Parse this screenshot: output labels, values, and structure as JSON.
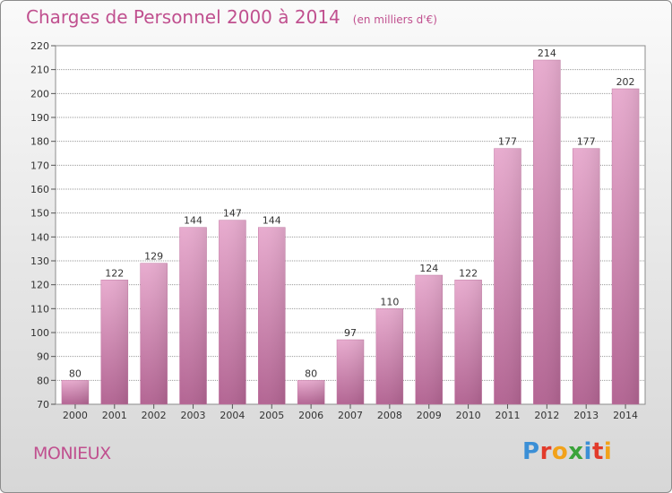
{
  "header": {
    "title": "Charges de Personnel 2000 à 2014",
    "subtitle": "(en milliers d'€)"
  },
  "footer": {
    "town": "MONIEUX",
    "logo": "Proxiti"
  },
  "colors": {
    "title": "#c0508f",
    "bar_light": "#e5a8cb",
    "bar_dark": "#b86a97",
    "grid": "#9a9a9a"
  },
  "chart_data": {
    "type": "bar",
    "title": "Charges de Personnel 2000 à 2014",
    "subtitle": "(en milliers d'€)",
    "xlabel": "",
    "ylabel": "",
    "categories": [
      "2000",
      "2001",
      "2002",
      "2003",
      "2004",
      "2005",
      "2006",
      "2007",
      "2008",
      "2009",
      "2010",
      "2011",
      "2012",
      "2013",
      "2014"
    ],
    "values": [
      80,
      122,
      129,
      144,
      147,
      144,
      80,
      97,
      110,
      124,
      122,
      177,
      214,
      177,
      202
    ],
    "ylim": [
      70,
      220
    ],
    "yticks": [
      70,
      80,
      90,
      100,
      110,
      120,
      130,
      140,
      150,
      160,
      170,
      180,
      190,
      200,
      210,
      220
    ],
    "grid": true,
    "data_labels": true
  }
}
